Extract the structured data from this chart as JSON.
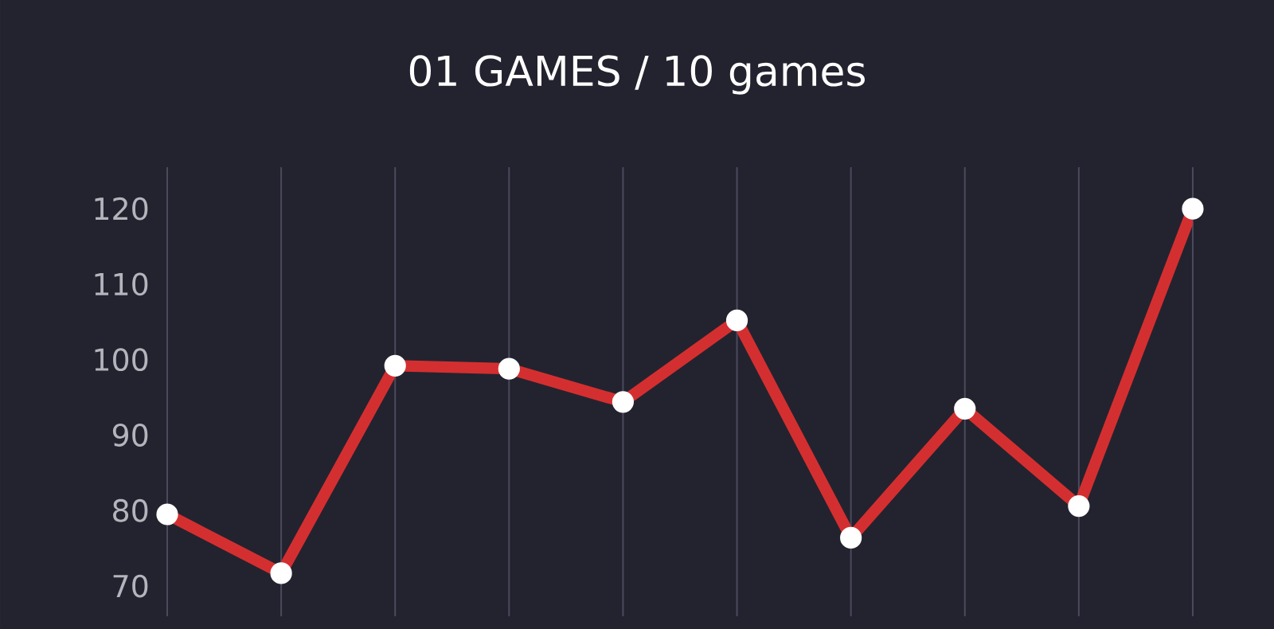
{
  "chart_data": {
    "type": "line",
    "title": "01 GAMES / 10 games",
    "categories": [
      null,
      null,
      null,
      null,
      null,
      null,
      null,
      null,
      null,
      null
    ],
    "values": [
      79.5,
      71.7,
      99.2,
      98.8,
      94.4,
      105.2,
      76.4,
      93.5,
      80.6,
      120
    ],
    "color": "#d42f30",
    "ylim": [
      66,
      125.5
    ],
    "yticks": [
      70,
      80,
      90,
      100,
      110,
      120
    ],
    "grid": "x",
    "marker": "circle"
  }
}
